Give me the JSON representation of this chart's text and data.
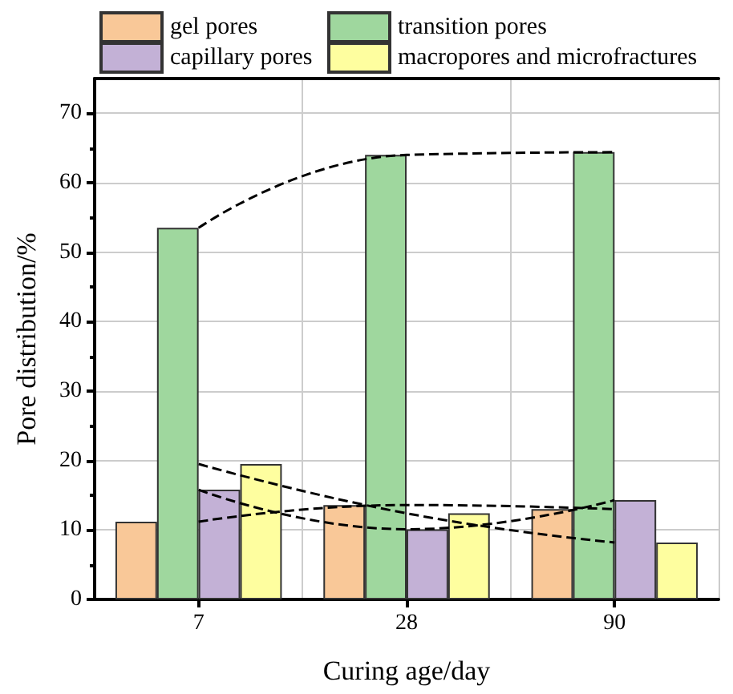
{
  "chart_data": {
    "type": "bar",
    "xlabel": "Curing age/day",
    "ylabel": "Pore distribution/%",
    "categories": [
      "7",
      "28",
      "90"
    ],
    "series": [
      {
        "name": "gel pores",
        "color": "#f9c898",
        "values": [
          11.2,
          13.6,
          13.0
        ]
      },
      {
        "name": "transition pores",
        "color": "#9fd79e",
        "values": [
          53.5,
          64.0,
          64.4
        ]
      },
      {
        "name": "capillary pores",
        "color": "#c3b1d6",
        "values": [
          15.8,
          10.1,
          14.3
        ]
      },
      {
        "name": "macropores and microfractures",
        "color": "#fefe9f",
        "values": [
          19.5,
          12.4,
          8.2
        ]
      },
      {
        "type": "line",
        "color": "#000000",
        "line_style": "dashed",
        "marker": "none",
        "values": [
          11.2,
          13.6,
          13.0
        ]
      },
      {
        "type": "line",
        "color": "#000000",
        "line_style": "dashed",
        "marker": "none",
        "values": [
          53.5,
          64.0,
          64.4
        ]
      },
      {
        "type": "line",
        "color": "#000000",
        "line_style": "dashed",
        "marker": "none",
        "values": [
          15.8,
          10.1,
          14.3
        ]
      },
      {
        "type": "line",
        "color": "#000000",
        "line_style": "dashed",
        "marker": "none",
        "values": [
          19.5,
          12.4,
          8.2
        ]
      }
    ],
    "ylim": [
      0,
      75
    ],
    "yticks": [
      0,
      10,
      20,
      30,
      40,
      50,
      60,
      70
    ],
    "grid": true,
    "legend": "top"
  }
}
